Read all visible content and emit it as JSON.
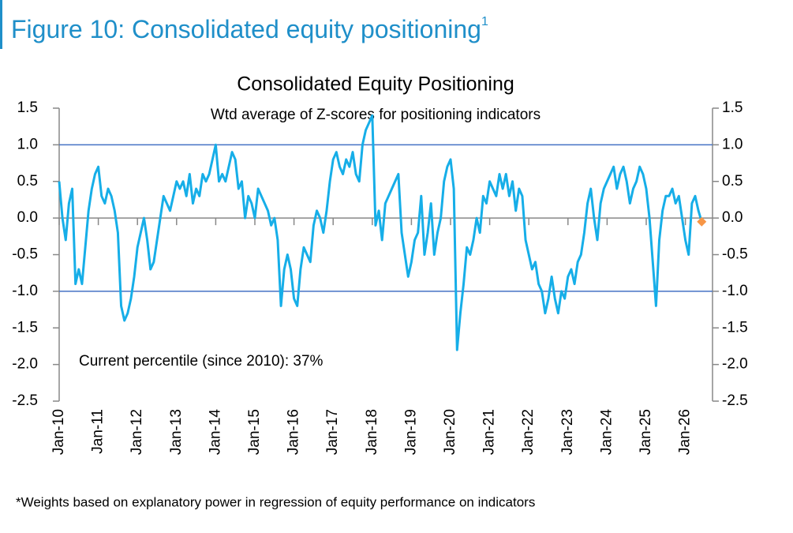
{
  "header": {
    "title": "Figure 10: Consolidated equity positioning",
    "superscript": "1"
  },
  "chart_data": {
    "type": "line",
    "title": "Consolidated Equity Positioning",
    "subtitle": "Wtd average of Z-scores for positioning indicators",
    "annotation": "Current percentile (since 2010): 37%",
    "categories": [
      "Jan-10",
      null,
      null,
      null,
      null,
      null,
      null,
      null,
      null,
      null,
      null,
      null,
      "Jan-11",
      null,
      null,
      null,
      null,
      null,
      null,
      null,
      null,
      null,
      null,
      null,
      "Jan-12",
      null,
      null,
      null,
      null,
      null,
      null,
      null,
      null,
      null,
      null,
      null,
      "Jan-13",
      null,
      null,
      null,
      null,
      null,
      null,
      null,
      null,
      null,
      null,
      null,
      "Jan-14",
      null,
      null,
      null,
      null,
      null,
      null,
      null,
      null,
      null,
      null,
      null,
      "Jan-15",
      null,
      null,
      null,
      null,
      null,
      null,
      null,
      null,
      null,
      null,
      null,
      "Jan-16",
      null,
      null,
      null,
      null,
      null,
      null,
      null,
      null,
      null,
      null,
      null,
      "Jan-17",
      null,
      null,
      null,
      null,
      null,
      null,
      null,
      null,
      null,
      null,
      null,
      "Jan-18",
      null,
      null,
      null,
      null,
      null,
      null,
      null,
      null,
      null,
      null,
      null,
      "Jan-19",
      null,
      null,
      null,
      null,
      null,
      null,
      null,
      null,
      null,
      null,
      null,
      "Jan-20",
      null,
      null,
      null,
      null,
      null,
      null,
      null,
      null,
      null,
      null,
      null,
      "Jan-21",
      null,
      null,
      null,
      null,
      null,
      null,
      null,
      null,
      null,
      null,
      null,
      "Jan-22",
      null,
      null,
      null,
      null,
      null,
      null,
      null,
      null,
      null,
      null,
      null,
      "Jan-23",
      null,
      null,
      null,
      null,
      null,
      null,
      null,
      null,
      null,
      null,
      null,
      "Jan-24",
      null,
      null,
      null,
      null,
      null,
      null,
      null,
      null,
      null,
      null,
      null,
      "Jan-25",
      null,
      null,
      null,
      null,
      null,
      null,
      null,
      null,
      null,
      null,
      null,
      "Jan-26",
      null,
      null,
      null,
      null,
      null
    ],
    "series": [
      {
        "color": "#16aee8",
        "values": [
          0.5,
          0.0,
          -0.3,
          0.2,
          0.4,
          -0.9,
          -0.7,
          -0.9,
          -0.4,
          0.1,
          0.4,
          0.6,
          0.7,
          0.3,
          0.2,
          0.4,
          0.3,
          0.1,
          -0.2,
          -1.2,
          -1.4,
          -1.3,
          -1.1,
          -0.8,
          -0.4,
          -0.2,
          0.0,
          -0.3,
          -0.7,
          -0.6,
          -0.3,
          0.0,
          0.3,
          0.2,
          0.1,
          0.3,
          0.5,
          0.4,
          0.5,
          0.3,
          0.6,
          0.2,
          0.4,
          0.3,
          0.6,
          0.5,
          0.6,
          0.8,
          1.0,
          0.5,
          0.6,
          0.5,
          0.7,
          0.9,
          0.8,
          0.4,
          0.5,
          0.0,
          0.3,
          0.2,
          0.0,
          0.4,
          0.3,
          0.2,
          0.1,
          -0.1,
          0.0,
          -0.3,
          -1.2,
          -0.7,
          -0.5,
          -0.7,
          -1.1,
          -1.2,
          -0.7,
          -0.4,
          -0.5,
          -0.6,
          -0.1,
          0.1,
          0.0,
          -0.2,
          0.1,
          0.5,
          0.8,
          0.9,
          0.7,
          0.6,
          0.8,
          0.7,
          0.9,
          0.6,
          0.5,
          1.0,
          1.2,
          1.3,
          1.4,
          -0.1,
          0.1,
          -0.3,
          0.2,
          0.3,
          0.4,
          0.5,
          0.6,
          -0.2,
          -0.5,
          -0.8,
          -0.6,
          -0.3,
          -0.2,
          0.3,
          -0.5,
          -0.2,
          0.2,
          -0.5,
          -0.2,
          0.0,
          0.5,
          0.7,
          0.8,
          0.4,
          -1.8,
          -1.3,
          -0.9,
          -0.4,
          -0.5,
          -0.3,
          0.0,
          -0.2,
          0.3,
          0.2,
          0.5,
          0.4,
          0.3,
          0.6,
          0.4,
          0.6,
          0.3,
          0.5,
          0.1,
          0.4,
          0.3,
          -0.3,
          -0.5,
          -0.7,
          -0.6,
          -0.9,
          -1.0,
          -1.3,
          -1.1,
          -0.8,
          -1.1,
          -1.3,
          -1.0,
          -1.1,
          -0.8,
          -0.7,
          -0.9,
          -0.6,
          -0.5,
          -0.2,
          0.2,
          0.4,
          0.0,
          -0.3,
          0.2,
          0.4,
          0.5,
          0.6,
          0.7,
          0.4,
          0.6,
          0.7,
          0.5,
          0.2,
          0.4,
          0.5,
          0.7,
          0.6,
          0.4,
          0.0,
          -0.6,
          -1.2,
          -0.3,
          0.1,
          0.3,
          0.3,
          0.4,
          0.2,
          0.3,
          0.0,
          -0.3,
          -0.5,
          0.2,
          0.3,
          0.1,
          -0.05
        ]
      }
    ],
    "last_point_marker": {
      "value": -0.05,
      "color": "#f79646"
    },
    "ylim": [
      -2.5,
      1.5
    ],
    "yticks": [
      {
        "value": -2.5,
        "label": "-2.5"
      },
      {
        "value": -2,
        "label": "-2.0"
      },
      {
        "value": -1.5,
        "label": "-1.5"
      },
      {
        "value": -1,
        "label": "-1.0"
      },
      {
        "value": -0.5,
        "label": "-0.5"
      },
      {
        "value": 0,
        "label": "0.0"
      },
      {
        "value": 0.5,
        "label": "0.5"
      },
      {
        "value": 1,
        "label": "1.0"
      },
      {
        "value": 1.5,
        "label": "1.5"
      }
    ],
    "hlines": [
      1,
      -1
    ],
    "hline_color": "#4472c4"
  },
  "footnote": "*Weights based on explanatory power in regression of equity performance on indicators"
}
